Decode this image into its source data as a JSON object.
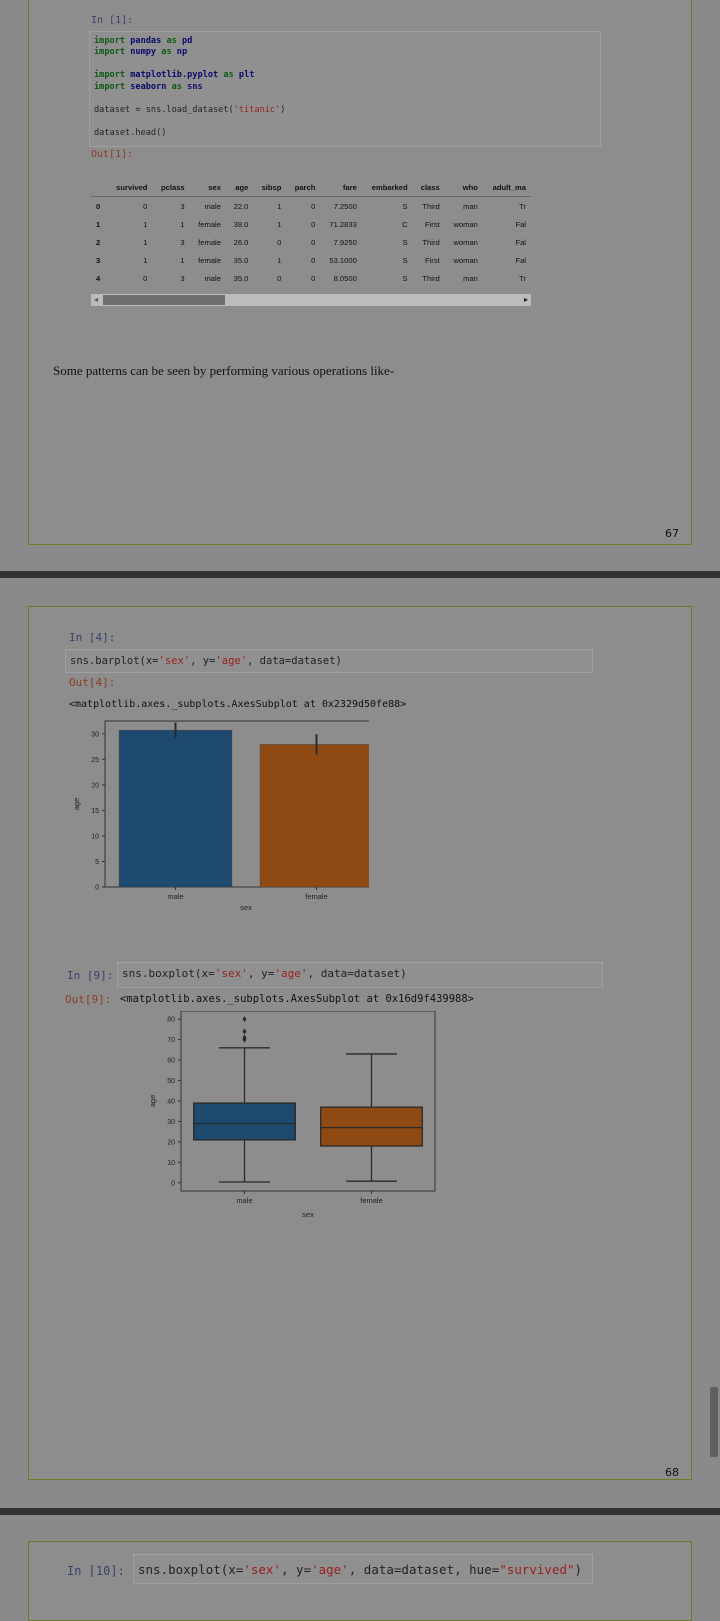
{
  "page1": {
    "in_prompt": "In [1]:",
    "code": {
      "line1": [
        "import",
        " pandas ",
        "as",
        " pd"
      ],
      "line2": [
        "import",
        " numpy ",
        "as",
        " np"
      ],
      "line3": [
        "import",
        " matplotlib.pyplot ",
        "as",
        " plt"
      ],
      "line4": [
        "import",
        " seaborn ",
        "as",
        " sns"
      ],
      "line5_a": "dataset = sns.load_dataset(",
      "line5_str": "'titanic'",
      "line5_b": ")",
      "line6": "dataset.head()"
    },
    "out_prompt": "Out[1]:",
    "table": {
      "columns": [
        "",
        "survived",
        "pclass",
        "sex",
        "age",
        "sibsp",
        "parch",
        "fare",
        "embarked",
        "class",
        "who",
        "adult_ma"
      ],
      "rows": [
        [
          "0",
          "0",
          "3",
          "male",
          "22.0",
          "1",
          "0",
          "7.2500",
          "S",
          "Third",
          "man",
          "Tr"
        ],
        [
          "1",
          "1",
          "1",
          "female",
          "38.0",
          "1",
          "0",
          "71.2833",
          "C",
          "First",
          "woman",
          "Fal"
        ],
        [
          "2",
          "1",
          "3",
          "female",
          "26.0",
          "0",
          "0",
          "7.9250",
          "S",
          "Third",
          "woman",
          "Fal"
        ],
        [
          "3",
          "1",
          "1",
          "female",
          "35.0",
          "1",
          "0",
          "53.1000",
          "S",
          "First",
          "woman",
          "Fal"
        ],
        [
          "4",
          "0",
          "3",
          "male",
          "35.0",
          "0",
          "0",
          "8.0500",
          "S",
          "Third",
          "man",
          "Tr"
        ]
      ],
      "scroll_fraction": 0.68
    },
    "body_text": "Some patterns can be seen by performing various operations like-",
    "page_number": "67"
  },
  "page2": {
    "in4_prompt": "In [4]:",
    "in4_code": {
      "a": "sns.barplot(x=",
      "s1": "'sex'",
      "b": ", y=",
      "s2": "'age'",
      "c": ", data=dataset)"
    },
    "out4_prompt": "Out[4]:",
    "out4_text": "<matplotlib.axes._subplots.AxesSubplot at 0x2329d50fe88>",
    "in9_prompt": "In [9]:",
    "in9_code": {
      "a": "sns.boxplot(x=",
      "s1": "'sex'",
      "b": ", y=",
      "s2": "'age'",
      "c": ", data=dataset)"
    },
    "out9_prompt": "Out[9]:",
    "out9_text": "<matplotlib.axes._subplots.AxesSubplot at 0x16d9f439988>",
    "page_number": "68"
  },
  "page3": {
    "in10_prompt": "In [10]:",
    "in10_code": {
      "a": "sns.boxplot(x=",
      "s1": "'sex'",
      "b": ", y=",
      "s2": "'age'",
      "c": ", data=dataset, hue=",
      "s3": "\"survived\"",
      "d": ")"
    }
  },
  "chart_data": [
    {
      "type": "bar",
      "categories": [
        "male",
        "female"
      ],
      "values": [
        30.7,
        27.9
      ],
      "error": [
        [
          29.2,
          32.2
        ],
        [
          26.0,
          29.9
        ]
      ],
      "colors": [
        "#1d4a6e",
        "#8f4a14"
      ],
      "xlabel": "sex",
      "ylabel": "age",
      "ylim": [
        0,
        32.5
      ],
      "yticks": [
        0,
        5,
        10,
        15,
        20,
        25,
        30
      ]
    },
    {
      "type": "box",
      "categories": [
        "male",
        "female"
      ],
      "boxes": [
        {
          "whisker_low": 0.4,
          "q1": 21,
          "median": 29,
          "q3": 39,
          "whisker_high": 66,
          "outliers": [
            70,
            71,
            74,
            80
          ]
        },
        {
          "whisker_low": 0.8,
          "q1": 18,
          "median": 27,
          "q3": 37,
          "whisker_high": 63,
          "outliers": []
        }
      ],
      "colors": [
        "#1d4a6e",
        "#8f4a14"
      ],
      "xlabel": "sex",
      "ylabel": "age",
      "ylim": [
        -4,
        84
      ],
      "yticks": [
        0,
        10,
        20,
        30,
        40,
        50,
        60,
        70,
        80
      ]
    }
  ]
}
